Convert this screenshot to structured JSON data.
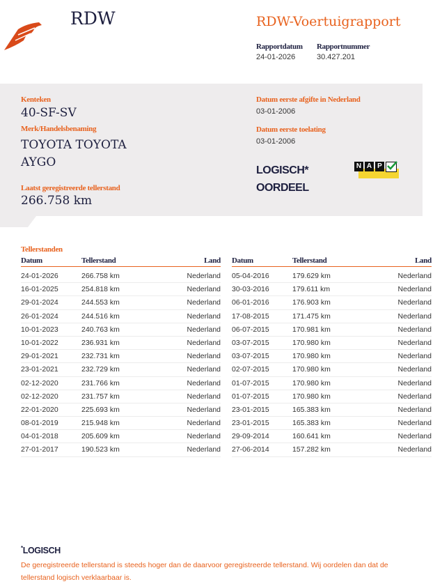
{
  "header": {
    "logo_text": "RDW",
    "report_title": "RDW-Voertuigrapport",
    "report_date_label": "Rapportdatum",
    "report_date": "24-01-2026",
    "report_number_label": "Rapportnummer",
    "report_number": "30.427.201",
    "brand_color": "#e8621e"
  },
  "vehicle": {
    "plate_label": "Kenteken",
    "plate": "40-SF-SV",
    "make_label": "Merk/Handelsbenaming",
    "make_line1": "TOYOTA TOYOTA",
    "make_line2": "AYGO",
    "odometer_label": "Laatst geregistreerde tellerstand",
    "odometer": "266.758 km",
    "first_issue_nl_label": "Datum eerste afgifte in Nederland",
    "first_issue_nl": "03-01-2006",
    "first_admission_label": "Datum eerste toelating",
    "first_admission": "03-01-2006",
    "verdict_line1": "LOGISCH*",
    "verdict_line2": "OORDEEL",
    "nap_letters": [
      "N",
      "A",
      "P"
    ]
  },
  "readings": {
    "title": "Tellerstanden",
    "columns": [
      "Datum",
      "Tellerstand",
      "Land"
    ],
    "left": [
      [
        "24-01-2026",
        "266.758 km",
        "Nederland"
      ],
      [
        "16-01-2025",
        "254.818 km",
        "Nederland"
      ],
      [
        "29-01-2024",
        "244.553 km",
        "Nederland"
      ],
      [
        "26-01-2024",
        "244.516 km",
        "Nederland"
      ],
      [
        "10-01-2023",
        "240.763 km",
        "Nederland"
      ],
      [
        "10-01-2022",
        "236.931 km",
        "Nederland"
      ],
      [
        "29-01-2021",
        "232.731 km",
        "Nederland"
      ],
      [
        "23-01-2021",
        "232.729 km",
        "Nederland"
      ],
      [
        "02-12-2020",
        "231.766 km",
        "Nederland"
      ],
      [
        "02-12-2020",
        "231.757 km",
        "Nederland"
      ],
      [
        "22-01-2020",
        "225.693 km",
        "Nederland"
      ],
      [
        "08-01-2019",
        "215.948 km",
        "Nederland"
      ],
      [
        "04-01-2018",
        "205.609 km",
        "Nederland"
      ],
      [
        "27-01-2017",
        "190.523 km",
        "Nederland"
      ]
    ],
    "right": [
      [
        "05-04-2016",
        "179.629 km",
        "Nederland"
      ],
      [
        "30-03-2016",
        "179.611 km",
        "Nederland"
      ],
      [
        "06-01-2016",
        "176.903 km",
        "Nederland"
      ],
      [
        "17-08-2015",
        "171.475 km",
        "Nederland"
      ],
      [
        "06-07-2015",
        "170.981 km",
        "Nederland"
      ],
      [
        "03-07-2015",
        "170.980 km",
        "Nederland"
      ],
      [
        "03-07-2015",
        "170.980 km",
        "Nederland"
      ],
      [
        "02-07-2015",
        "170.980 km",
        "Nederland"
      ],
      [
        "01-07-2015",
        "170.980 km",
        "Nederland"
      ],
      [
        "01-07-2015",
        "170.980 km",
        "Nederland"
      ],
      [
        "23-01-2015",
        "165.383 km",
        "Nederland"
      ],
      [
        "23-01-2015",
        "165.383 km",
        "Nederland"
      ],
      [
        "29-09-2014",
        "160.641 km",
        "Nederland"
      ],
      [
        "27-06-2014",
        "157.282 km",
        "Nederland"
      ]
    ]
  },
  "footnote": {
    "title": "LOGISCH",
    "asterisk": "*",
    "text": "De geregistreerde tellerstand is steeds hoger dan de daarvoor geregistreerde tellerstand. Wij oordelen dan dat de tellerstand logisch verklaarbaar is."
  }
}
